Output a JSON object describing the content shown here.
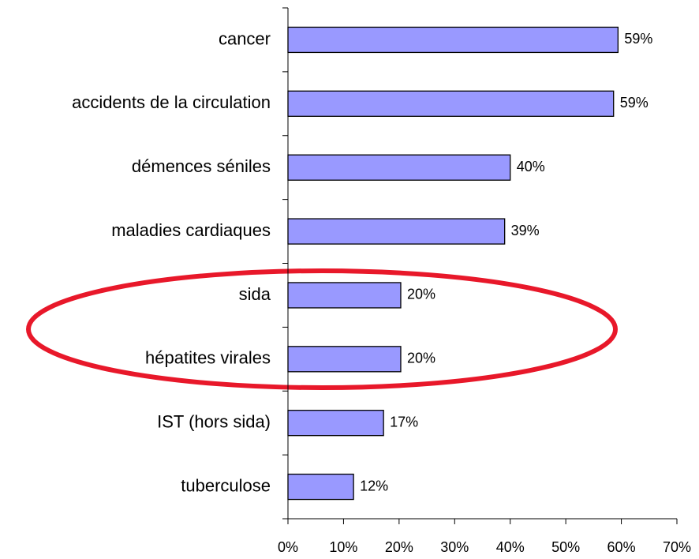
{
  "chart_data": {
    "type": "hbar",
    "categories": [
      "cancer",
      "accidents de la circulation",
      "démences séniles",
      "maladies cardiaques",
      "sida",
      "hépatites virales",
      "IST (hors sida)",
      "tuberculose"
    ],
    "values": [
      59.4,
      58.6,
      40,
      39,
      20.3,
      20.3,
      17.2,
      11.8
    ],
    "value_labels": [
      "59%",
      "59%",
      "40%",
      "39%",
      "20%",
      "20%",
      "17%",
      "12%"
    ],
    "color": "#9999ff",
    "xlim": [
      0,
      70
    ],
    "xticks": [
      {
        "value": 0,
        "label": "0%"
      },
      {
        "value": 10,
        "label": "10%"
      },
      {
        "value": 20,
        "label": "20%"
      },
      {
        "value": 30,
        "label": "30%"
      },
      {
        "value": 40,
        "label": "40%"
      },
      {
        "value": 50,
        "label": "50%"
      },
      {
        "value": 60,
        "label": "60%"
      },
      {
        "value": 70,
        "label": "70%"
      }
    ]
  }
}
